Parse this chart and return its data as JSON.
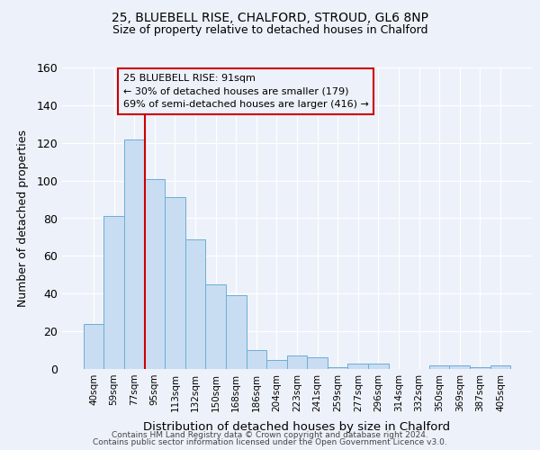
{
  "title1": "25, BLUEBELL RISE, CHALFORD, STROUD, GL6 8NP",
  "title2": "Size of property relative to detached houses in Chalford",
  "xlabel": "Distribution of detached houses by size in Chalford",
  "ylabel": "Number of detached properties",
  "bar_labels": [
    "40sqm",
    "59sqm",
    "77sqm",
    "95sqm",
    "113sqm",
    "132sqm",
    "150sqm",
    "168sqm",
    "186sqm",
    "204sqm",
    "223sqm",
    "241sqm",
    "259sqm",
    "277sqm",
    "296sqm",
    "314sqm",
    "332sqm",
    "350sqm",
    "369sqm",
    "387sqm",
    "405sqm"
  ],
  "bar_heights": [
    24,
    81,
    122,
    101,
    91,
    69,
    45,
    39,
    10,
    5,
    7,
    6,
    1,
    3,
    3,
    0,
    0,
    2,
    2,
    1,
    2
  ],
  "bar_color": "#c9ddf2",
  "bar_edge_color": "#6baed6",
  "vline_color": "#cc0000",
  "vline_pos": 2.5,
  "annotation_line1": "25 BLUEBELL RISE: 91sqm",
  "annotation_line2": "← 30% of detached houses are smaller (179)",
  "annotation_line3": "69% of semi-detached houses are larger (416) →",
  "ylim": [
    0,
    160
  ],
  "yticks": [
    0,
    20,
    40,
    60,
    80,
    100,
    120,
    140,
    160
  ],
  "bg_color": "#edf1f9",
  "grid_color": "#ffffff",
  "footer1": "Contains HM Land Registry data © Crown copyright and database right 2024.",
  "footer2": "Contains public sector information licensed under the Open Government Licence v3.0."
}
